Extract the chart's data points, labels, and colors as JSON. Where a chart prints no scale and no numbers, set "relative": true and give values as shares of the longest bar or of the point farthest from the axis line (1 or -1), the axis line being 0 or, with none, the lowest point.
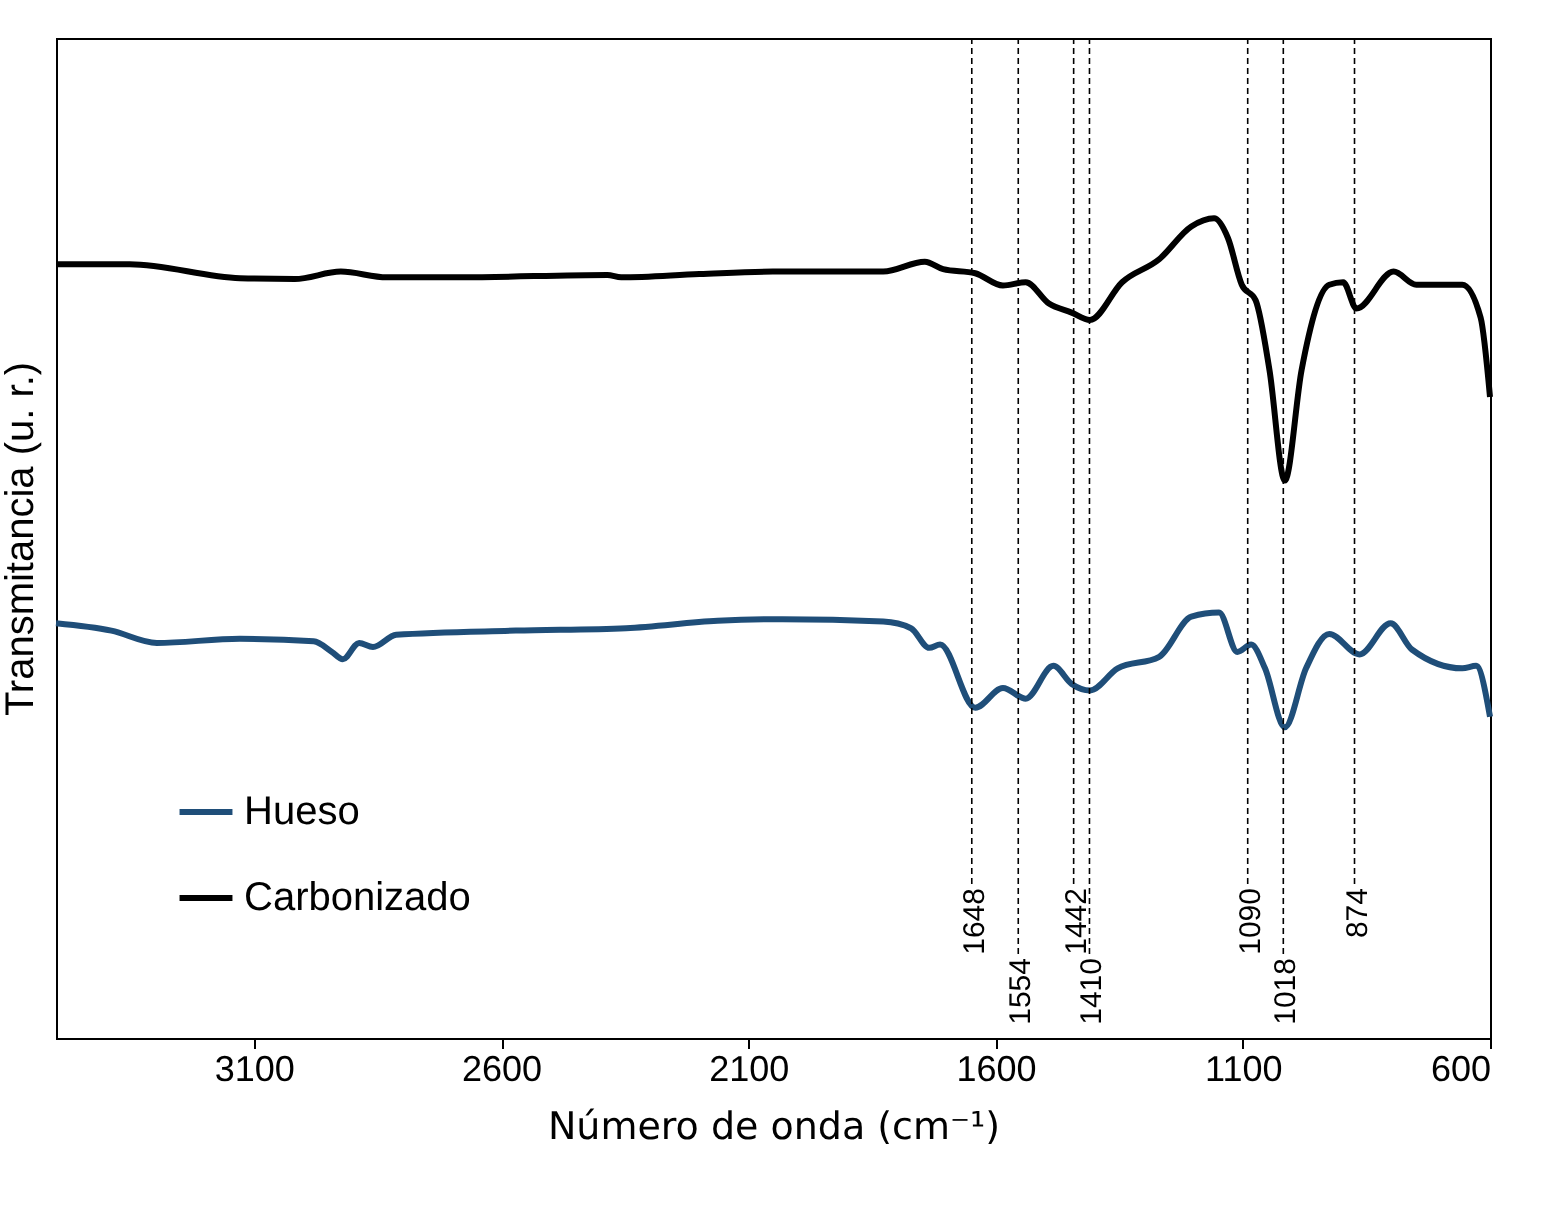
{
  "chart_data": {
    "type": "line",
    "relative": true,
    "xlabel": "Número de onda (cm⁻¹)",
    "ylabel": "Transmitancia (u. r.)",
    "xlim": [
      3500,
      600
    ],
    "xticks": [
      3100,
      2600,
      2100,
      1600,
      1100,
      600
    ],
    "grid": false,
    "legend": "bottom left",
    "marker": "none",
    "line_style": "solid",
    "series": [
      {
        "name": "Hueso",
        "color": "#1f4e79",
        "x": [
          3500,
          3388,
          3296,
          3128,
          2979,
          2942,
          2920,
          2887,
          2859,
          2812,
          2570,
          2347,
          2162,
          2031,
          1827,
          1771,
          1734,
          1712,
          1641,
          1585,
          1539,
          1483,
          1446,
          1409,
          1353,
          1269,
          1204,
          1148,
          1111,
          1083,
          1055,
          1015,
          972,
          925,
          864,
          801,
          758,
          656,
          628,
          600
        ],
        "values": [
          0.506,
          0.497,
          0.482,
          0.487,
          0.484,
          0.471,
          0.462,
          0.482,
          0.477,
          0.492,
          0.497,
          0.5,
          0.509,
          0.511,
          0.508,
          0.5,
          0.476,
          0.48,
          0.403,
          0.427,
          0.414,
          0.454,
          0.432,
          0.424,
          0.451,
          0.465,
          0.514,
          0.519,
          0.471,
          0.48,
          0.451,
          0.379,
          0.451,
          0.493,
          0.468,
          0.506,
          0.474,
          0.451,
          0.454,
          0.392
        ]
      },
      {
        "name": "Carbonizado",
        "color": "#000000",
        "x": [
          3500,
          3351,
          3128,
          3017,
          2924,
          2831,
          2682,
          2385,
          2357,
          2199,
          2050,
          1827,
          1743,
          1706,
          1641,
          1585,
          1539,
          1492,
          1446,
          1409,
          1344,
          1269,
          1204,
          1158,
          1130,
          1102,
          1074,
          1046,
          1015,
          981,
          925,
          897,
          870,
          795,
          749,
          656,
          619,
          600
        ],
        "values": [
          0.944,
          0.944,
          0.927,
          0.926,
          0.935,
          0.928,
          0.928,
          0.931,
          0.928,
          0.932,
          0.935,
          0.935,
          0.947,
          0.938,
          0.933,
          0.918,
          0.922,
          0.896,
          0.885,
          0.876,
          0.922,
          0.95,
          0.99,
          1.0,
          0.976,
          0.919,
          0.9,
          0.815,
          0.68,
          0.815,
          0.919,
          0.922,
          0.89,
          0.935,
          0.919,
          0.919,
          0.879,
          0.782
        ]
      }
    ],
    "ref_lines": [
      {
        "axis": "x",
        "value": 1648,
        "label": "1648",
        "line_style": "dashed"
      },
      {
        "axis": "x",
        "value": 1554,
        "label": "1554",
        "line_style": "dashed"
      },
      {
        "axis": "x",
        "value": 1442,
        "label": "1442",
        "line_style": "dashed"
      },
      {
        "axis": "x",
        "value": 1410,
        "label": "1410",
        "line_style": "dashed"
      },
      {
        "axis": "x",
        "value": 1090,
        "label": "1090",
        "line_style": "dashed"
      },
      {
        "axis": "x",
        "value": 1018,
        "label": "1018",
        "line_style": "dashed"
      },
      {
        "axis": "x",
        "value": 874,
        "label": "874",
        "line_style": "dashed"
      }
    ]
  }
}
